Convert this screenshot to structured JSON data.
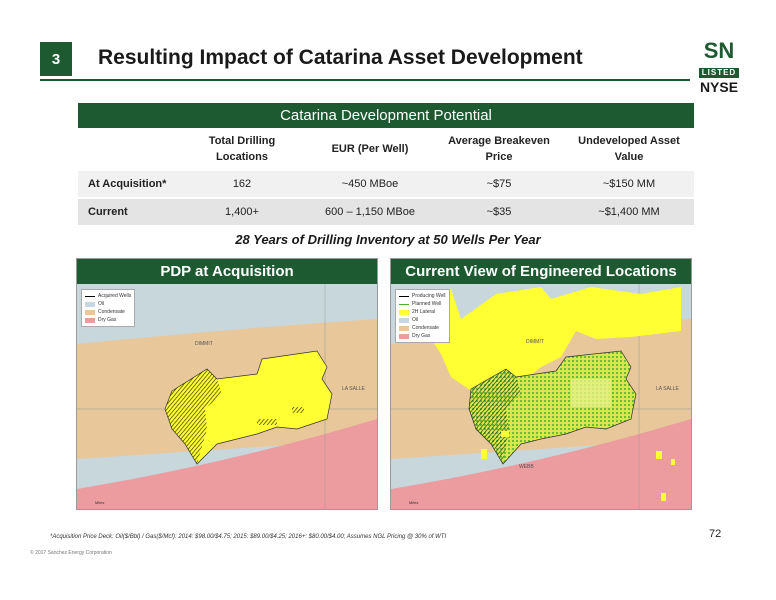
{
  "header": {
    "slide_number": "3",
    "title": "Resulting Impact of Catarina Asset Development",
    "logo": {
      "ticker": "SN",
      "listed": "LISTED",
      "exchange": "NYSE"
    }
  },
  "table": {
    "banner": "Catarina Development Potential",
    "columns": [
      "",
      "Total Drilling Locations",
      "EUR (Per Well)",
      "Average Breakeven Price",
      "Undeveloped Asset Value"
    ],
    "rows": [
      [
        "At Acquisition*",
        "162",
        "~450 MBoe",
        "~$75",
        "~$150 MM"
      ],
      [
        "Current",
        "1,400+",
        "600 – 1,150 MBoe",
        "~$35",
        "~$1,400 MM"
      ]
    ]
  },
  "subheading": "28 Years of Drilling Inventory at 50 Wells Per Year",
  "maps": {
    "left": {
      "title": "PDP at Acquisition",
      "legend": [
        "Acquired Wells",
        "Oil",
        "Condensate",
        "Dry Gas"
      ],
      "counties": [
        "DIMMIT",
        "LA SALLE"
      ],
      "scale": "Miles"
    },
    "right": {
      "title": "Current View of Engineered Locations",
      "legend": [
        "Producing Well",
        "Planned Well",
        "2H Lateral",
        "Oil",
        "Condensate",
        "Dry Gas"
      ],
      "counties": [
        "DIMMIT",
        "LA SALLE",
        "WEBB"
      ],
      "scale": "Miles"
    }
  },
  "colors": {
    "brand_green": "#1e5a31",
    "acreage_yellow": "#ffff33",
    "oil_blue": "#c8d7dc",
    "condensate_tan": "#e8c79b",
    "dry_gas_pink": "#ec9c9f",
    "wells_green": "#4caf2a"
  },
  "footer": {
    "footnote": "*Acquisition Price Deck: Oil($/Bbl) / Gas($/Mcf): 2014: $98.00/$4.75; 2015: $89.00/$4.25; 2016+: $80.00/$4.00; Assumes NGL Pricing @ 30% of WTI",
    "page_number": "72",
    "copyright": "© 2017 Sanchez Energy Corporation"
  }
}
